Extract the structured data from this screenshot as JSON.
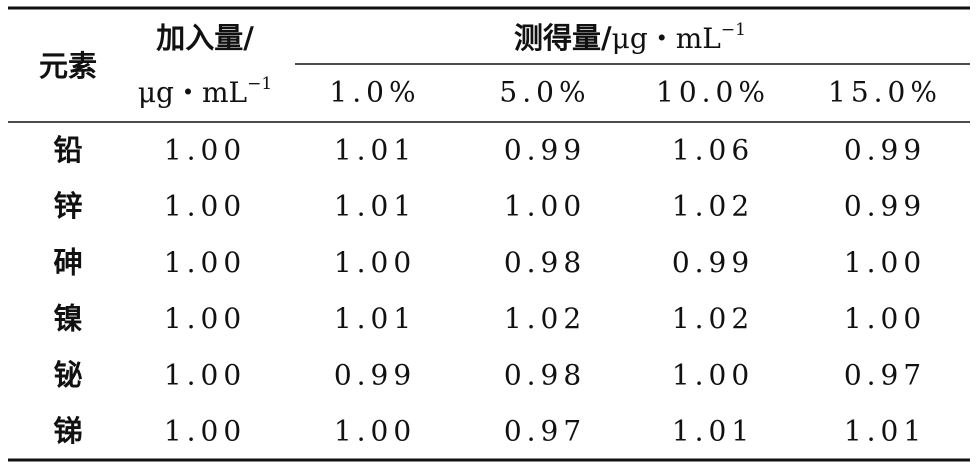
{
  "header": {
    "element": "元素",
    "added": {
      "label": "加入量/",
      "unit": "μg・mL",
      "unit_sup": "−1"
    },
    "measured": {
      "label": "测得量/",
      "unit": "μg・mL",
      "unit_sup": "−1"
    },
    "columns": [
      "1.0%",
      "5.0%",
      "10.0%",
      "15.0%"
    ]
  },
  "rows": [
    [
      "铅",
      "1.00",
      "1.01",
      "0.99",
      "1.06",
      "0.99"
    ],
    [
      "锌",
      "1.00",
      "1.01",
      "1.00",
      "1.02",
      "0.99"
    ],
    [
      "砷",
      "1.00",
      "1.00",
      "0.98",
      "0.99",
      "1.00"
    ],
    [
      "镍",
      "1.00",
      "1.01",
      "1.02",
      "1.02",
      "1.00"
    ],
    [
      "铋",
      "1.00",
      "0.99",
      "0.98",
      "1.00",
      "0.97"
    ],
    [
      "锑",
      "1.00",
      "1.00",
      "0.97",
      "1.01",
      "1.01"
    ]
  ]
}
